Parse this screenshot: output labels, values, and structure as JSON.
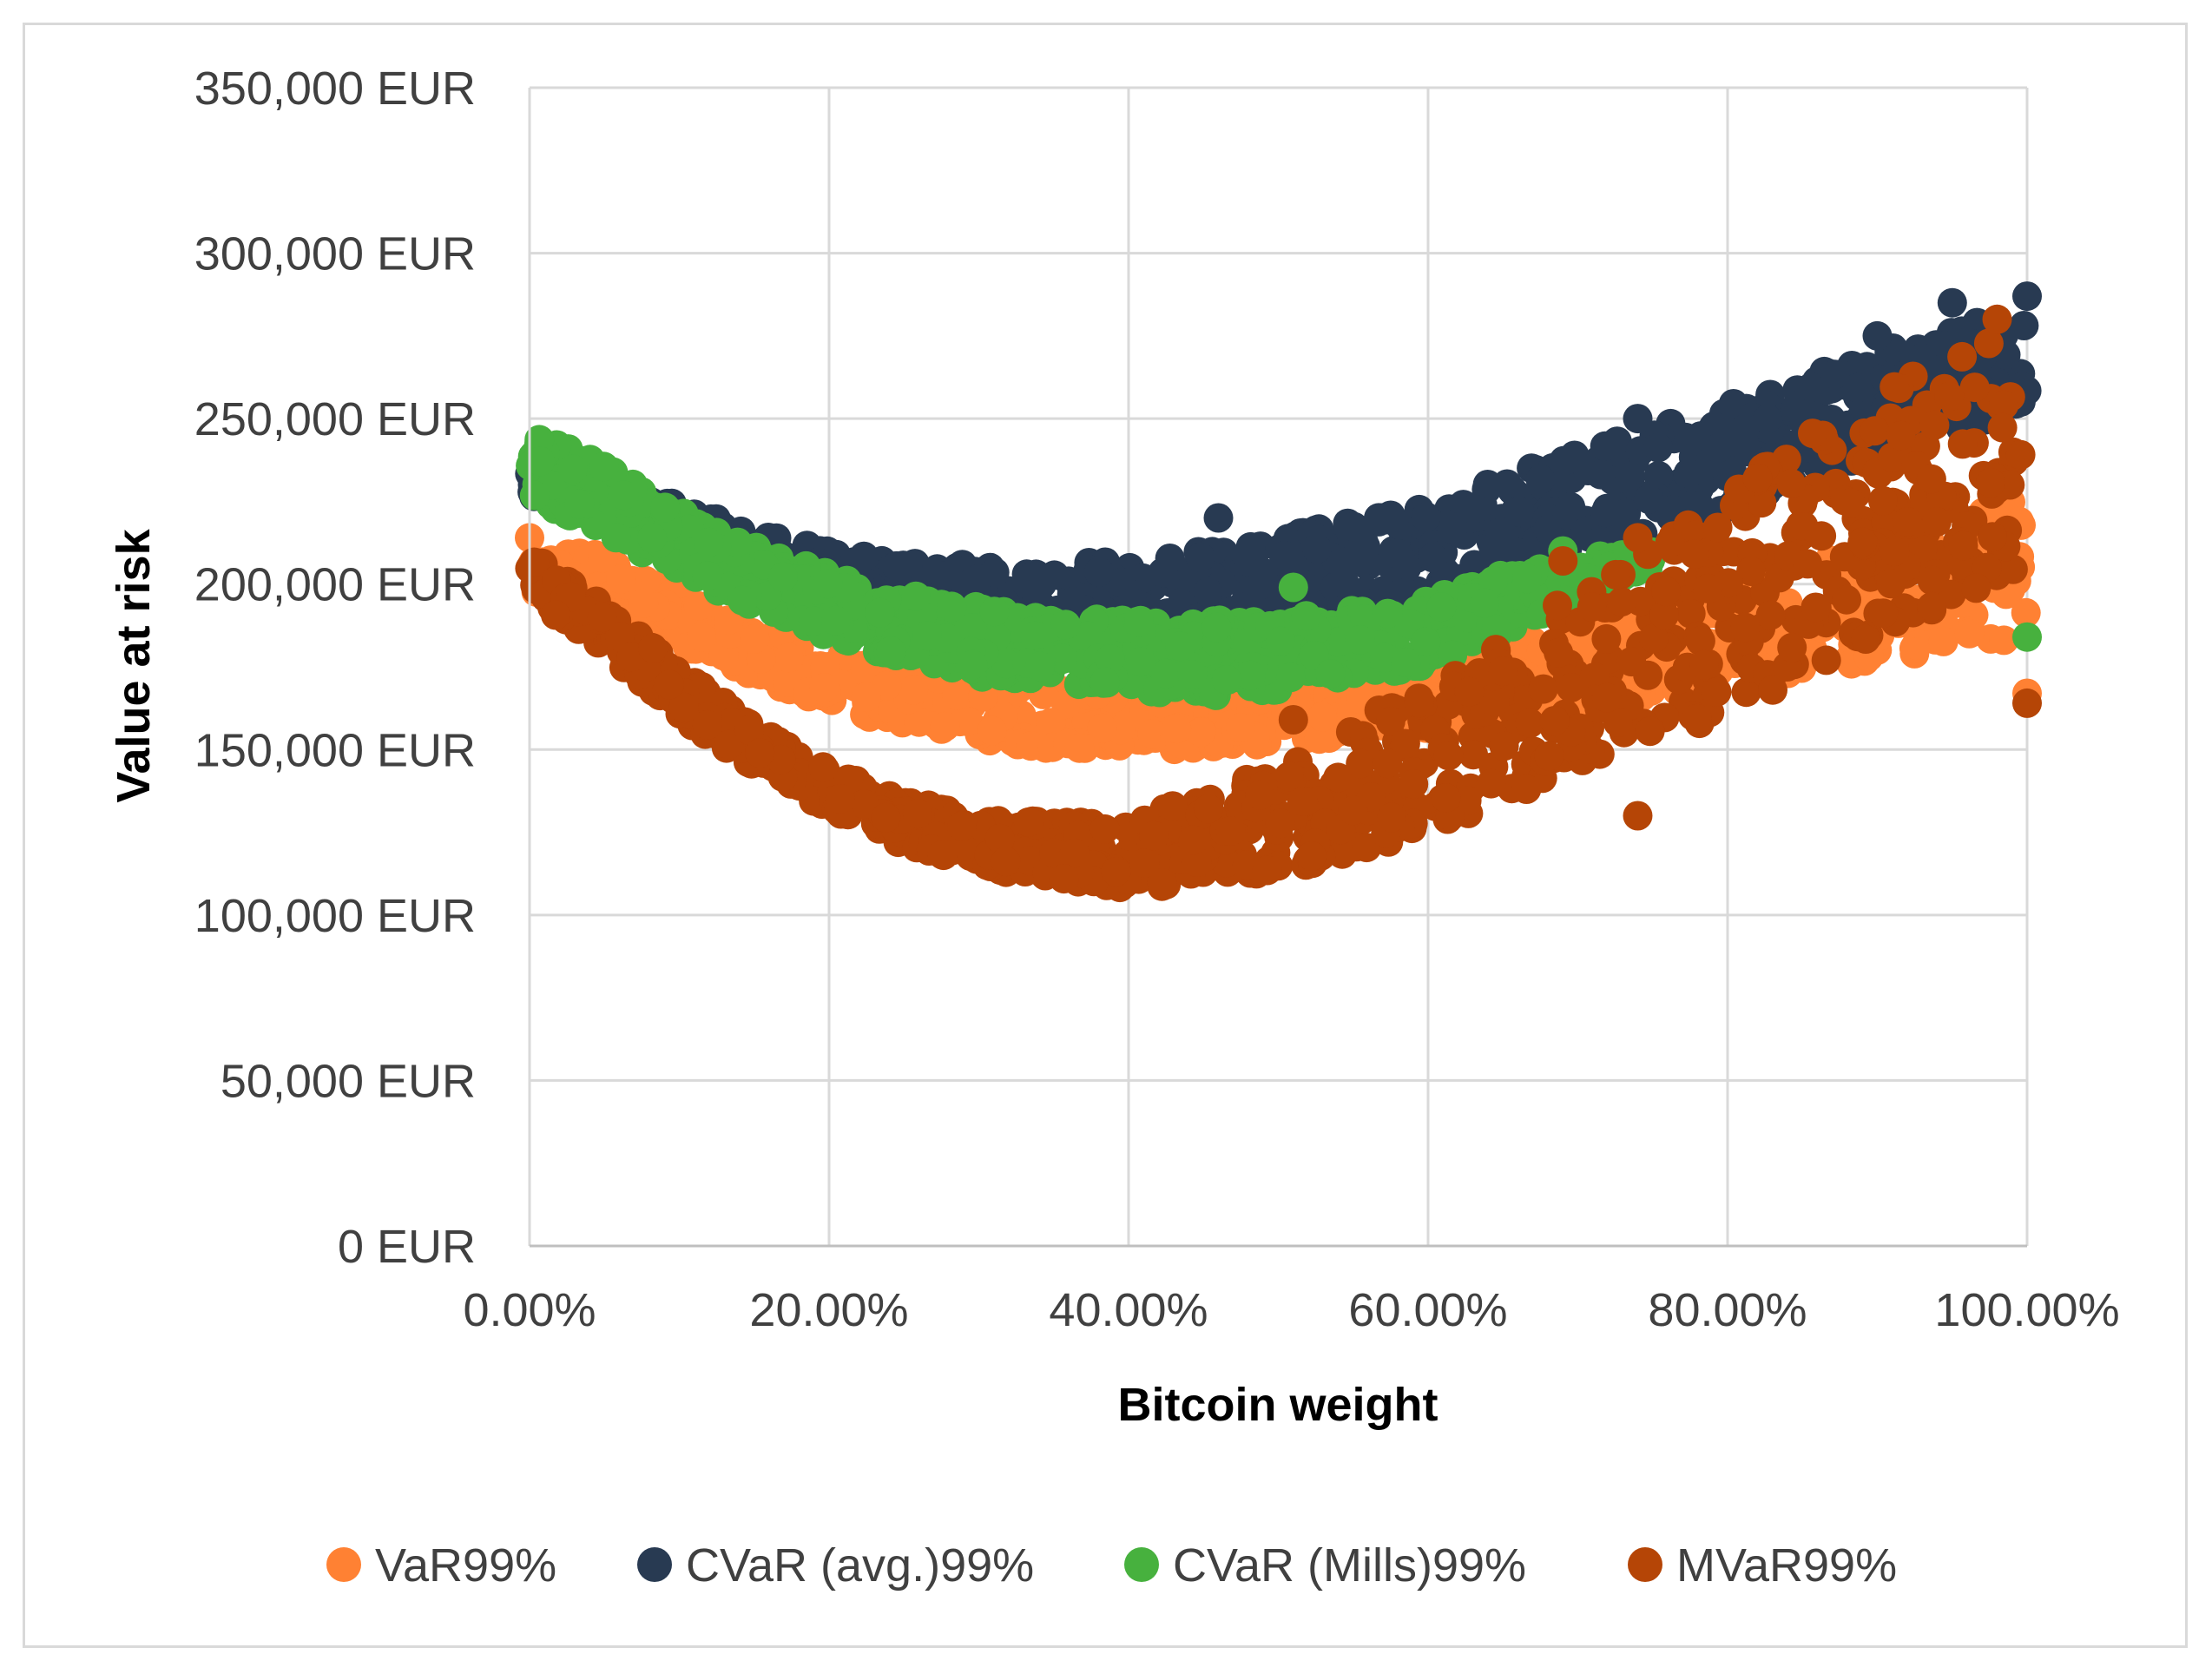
{
  "chart_data": {
    "type": "scatter",
    "title": "",
    "xlabel": "Bitcoin weight",
    "ylabel": "Value at risk",
    "xlim": [
      0,
      1
    ],
    "ylim": [
      0,
      350000
    ],
    "x_ticks": [
      {
        "value": 0.0,
        "label": "0.00%"
      },
      {
        "value": 0.2,
        "label": "20.00%"
      },
      {
        "value": 0.4,
        "label": "40.00%"
      },
      {
        "value": 0.6,
        "label": "60.00%"
      },
      {
        "value": 0.8,
        "label": "80.00%"
      },
      {
        "value": 1.0,
        "label": "100.00%"
      }
    ],
    "y_ticks": [
      {
        "value": 0,
        "label": "0 EUR"
      },
      {
        "value": 50000,
        "label": "50,000 EUR"
      },
      {
        "value": 100000,
        "label": "100,000 EUR"
      },
      {
        "value": 150000,
        "label": "150,000 EUR"
      },
      {
        "value": 200000,
        "label": "200,000 EUR"
      },
      {
        "value": 250000,
        "label": "250,000 EUR"
      },
      {
        "value": 300000,
        "label": "300,000 EUR"
      },
      {
        "value": 350000,
        "label": "350,000 EUR"
      }
    ],
    "grid": true,
    "legend_position": "bottom",
    "series": [
      {
        "name": "VaR99%",
        "color": "#ff8133",
        "band_x": [
          0.0,
          0.05,
          0.1,
          0.15,
          0.2,
          0.25,
          0.3,
          0.35,
          0.4,
          0.45,
          0.5,
          0.55,
          0.6,
          0.65,
          0.7,
          0.75,
          0.8,
          0.85,
          0.9,
          0.95,
          1.0
        ],
        "band_low": [
          198000,
          190000,
          182000,
          172000,
          163000,
          157000,
          153000,
          150000,
          149000,
          150000,
          152000,
          154000,
          156000,
          158000,
          162000,
          166000,
          170000,
          173000,
          177000,
          180000,
          184000
        ],
        "band_high": [
          216000,
          208000,
          198000,
          188000,
          180000,
          174000,
          170000,
          168000,
          168000,
          169000,
          171000,
          174000,
          177000,
          182000,
          188000,
          194000,
          200000,
          208000,
          214000,
          220000,
          228000
        ],
        "outliers": [
          [
            1.0,
            167000
          ],
          [
            0.0,
            214000
          ]
        ]
      },
      {
        "name": "CVaR (avg.)99%",
        "color": "#283a52",
        "band_x": [
          0.0,
          0.05,
          0.1,
          0.15,
          0.2,
          0.25,
          0.3,
          0.35,
          0.4,
          0.45,
          0.5,
          0.55,
          0.6,
          0.65,
          0.7,
          0.75,
          0.8,
          0.85,
          0.9,
          0.95,
          1.0
        ],
        "band_low": [
          226000,
          218000,
          207000,
          198000,
          190000,
          184000,
          180000,
          178000,
          178000,
          180000,
          184000,
          188000,
          194000,
          200000,
          208000,
          215000,
          222000,
          230000,
          238000,
          246000,
          254000
        ],
        "band_high": [
          242000,
          232000,
          224000,
          216000,
          210000,
          207000,
          206000,
          207000,
          208000,
          210000,
          214000,
          219000,
          224000,
          232000,
          240000,
          247000,
          254000,
          262000,
          270000,
          277000,
          284000
        ],
        "outliers": [
          [
            0.9,
            275000
          ],
          [
            0.95,
            285000
          ],
          [
            1.0,
            287000
          ],
          [
            0.74,
            250000
          ],
          [
            0.46,
            220000
          ]
        ]
      },
      {
        "name": "CVaR (Mills)99%",
        "color": "#47b13e",
        "band_x": [
          0.0,
          0.05,
          0.1,
          0.15,
          0.2,
          0.25,
          0.3,
          0.35,
          0.4,
          0.45,
          0.5,
          0.55,
          0.6,
          0.65,
          0.7,
          0.75
        ],
        "band_low": [
          226000,
          216000,
          203000,
          193000,
          184000,
          177000,
          172000,
          169000,
          167000,
          166000,
          168000,
          171000,
          175000,
          184000,
          196000,
          205000
        ],
        "band_high": [
          246000,
          236000,
          222000,
          212000,
          203000,
          197000,
          193000,
          190000,
          189000,
          189000,
          190000,
          192000,
          196000,
          203000,
          208000,
          210000
        ],
        "outliers": [
          [
            1.0,
            184000
          ],
          [
            0.51,
            199000
          ],
          [
            0.69,
            210000
          ]
        ]
      },
      {
        "name": "MVaR99%",
        "color": "#b54506",
        "band_x": [
          0.0,
          0.05,
          0.1,
          0.15,
          0.2,
          0.25,
          0.3,
          0.35,
          0.4,
          0.45,
          0.5,
          0.55,
          0.6,
          0.65,
          0.7,
          0.75,
          0.8,
          0.85,
          0.9,
          0.95,
          1.0
        ],
        "band_low": [
          197000,
          178000,
          160000,
          144000,
          131000,
          121000,
          114000,
          110000,
          108000,
          109000,
          113000,
          118000,
          126000,
          134000,
          142000,
          150000,
          160000,
          172000,
          184000,
          194000,
          202000
        ],
        "band_high": [
          210000,
          193000,
          175000,
          157000,
          144000,
          135000,
          130000,
          128000,
          130000,
          136000,
          146000,
          158000,
          170000,
          184000,
          198000,
          212000,
          228000,
          244000,
          258000,
          270000,
          278000
        ],
        "outliers": [
          [
            0.74,
            130000
          ],
          [
            0.74,
            214000
          ],
          [
            0.69,
            207000
          ],
          [
            1.0,
            164000
          ],
          [
            0.51,
            159000
          ],
          [
            0.82,
            232000
          ],
          [
            0.98,
            280000
          ]
        ]
      }
    ]
  }
}
